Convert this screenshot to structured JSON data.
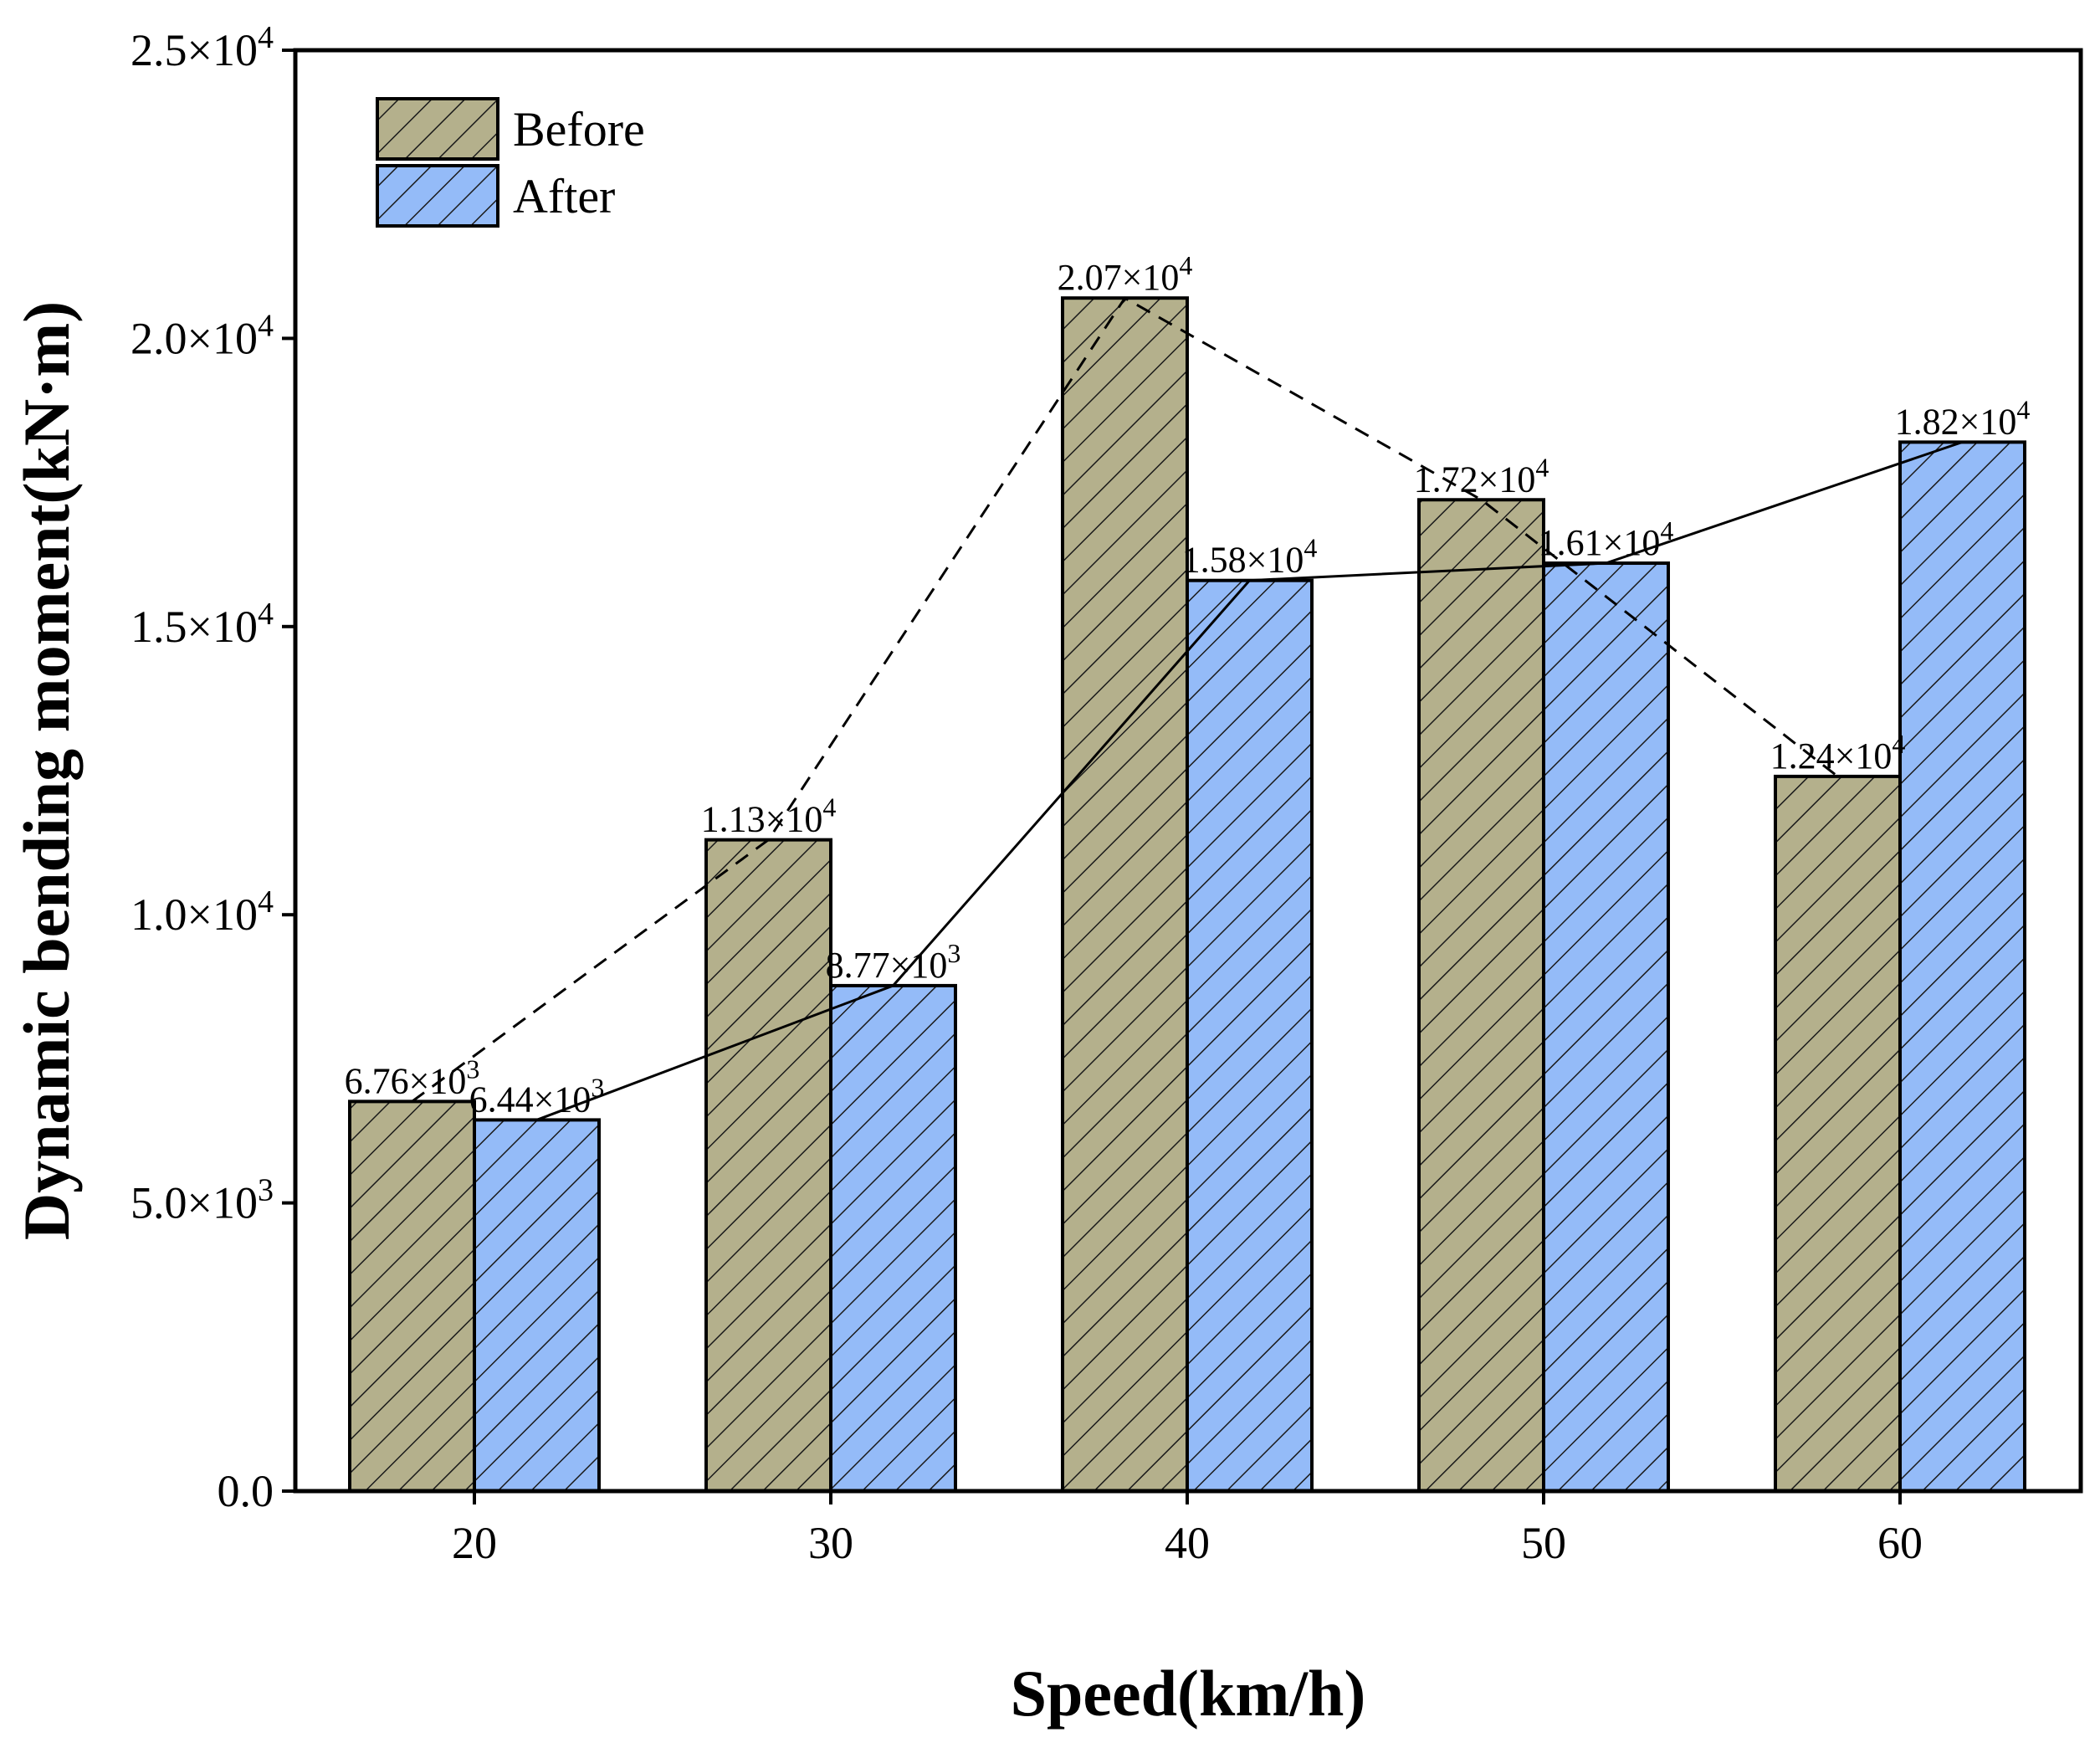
{
  "chart_data": {
    "type": "bar",
    "title": "",
    "xlabel": "Speed(km/h)",
    "ylabel": "Dynamic bending moment(kN·m)",
    "categories": [
      "20",
      "30",
      "40",
      "50",
      "60"
    ],
    "ylim": [
      0,
      25000
    ],
    "yticks": [
      {
        "value": 0,
        "mant": "0.0",
        "exp": ""
      },
      {
        "value": 5000,
        "mant": "5.0×10",
        "exp": "3"
      },
      {
        "value": 10000,
        "mant": "1.0×10",
        "exp": "4"
      },
      {
        "value": 15000,
        "mant": "1.5×10",
        "exp": "4"
      },
      {
        "value": 20000,
        "mant": "2.0×10",
        "exp": "4"
      },
      {
        "value": 25000,
        "mant": "2.5×10",
        "exp": "4"
      }
    ],
    "grid": false,
    "legend_position": "top-left",
    "series": [
      {
        "name": "Before",
        "color": "#b4b08c",
        "hatch": "diagonal",
        "connector": "dashed",
        "values": [
          6760,
          11300,
          20700,
          17200,
          12400
        ],
        "labels": [
          {
            "mant": "6.76×10",
            "exp": "3"
          },
          {
            "mant": "1.13×10",
            "exp": "4"
          },
          {
            "mant": "2.07×10",
            "exp": "4"
          },
          {
            "mant": "1.72×10",
            "exp": "4"
          },
          {
            "mant": "1.24×10",
            "exp": "4"
          }
        ]
      },
      {
        "name": "After",
        "color": "#94bbf8",
        "hatch": "diagonal",
        "connector": "solid",
        "values": [
          6440,
          8770,
          15800,
          16100,
          18200
        ],
        "labels": [
          {
            "mant": "6.44×10",
            "exp": "3"
          },
          {
            "mant": "8.77×10",
            "exp": "3"
          },
          {
            "mant": "1.58×10",
            "exp": "4"
          },
          {
            "mant": "1.61×10",
            "exp": "4"
          },
          {
            "mant": "1.82×10",
            "exp": "4"
          }
        ]
      }
    ]
  }
}
